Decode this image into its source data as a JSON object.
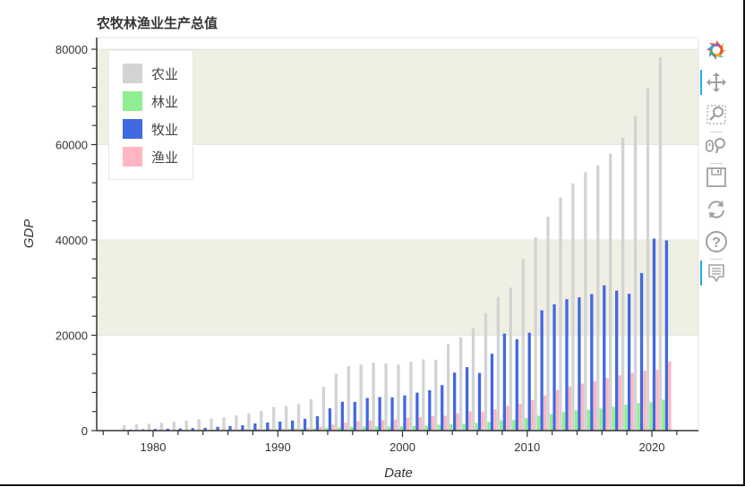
{
  "title": "农牧林渔业生产总值",
  "toolbar": {
    "items": [
      {
        "name": "bokeh-logo",
        "active": false
      },
      {
        "name": "pan-tool",
        "active": true
      },
      {
        "name": "box-zoom-tool",
        "active": false
      },
      {
        "name": "wheel-zoom-tool",
        "active": false
      },
      {
        "name": "save-tool",
        "active": false
      },
      {
        "name": "reset-tool",
        "active": false
      },
      {
        "name": "help-tool",
        "active": false
      },
      {
        "name": "hover-tool",
        "active": true
      }
    ]
  },
  "legend": [
    {
      "label": "农业",
      "color": "#d3d3d3"
    },
    {
      "label": "林业",
      "color": "#90ee90"
    },
    {
      "label": "牧业",
      "color": "#4169e1"
    },
    {
      "label": "渔业",
      "color": "#ffb6c1"
    }
  ],
  "colors": {
    "band": "#f0efe3",
    "axis": "#333333",
    "grid": "#e5e5e5"
  },
  "chart_data": {
    "type": "bar",
    "title": "农牧林渔业生产总值",
    "xlabel": "Date",
    "ylabel": "GDP",
    "ylim": [
      0,
      82000
    ],
    "xlim": [
      1975.5,
      2023.8
    ],
    "yticks": [
      0,
      20000,
      40000,
      60000,
      80000
    ],
    "xticks": [
      1980,
      1990,
      2000,
      2010,
      2020
    ],
    "bands": [
      [
        20000,
        40000
      ],
      [
        60000,
        80000
      ]
    ],
    "legend_position": "top-left",
    "categories": [
      1978,
      1979,
      1980,
      1981,
      1982,
      1983,
      1984,
      1985,
      1986,
      1987,
      1988,
      1989,
      1990,
      1991,
      1992,
      1993,
      1994,
      1995,
      1996,
      1997,
      1998,
      1999,
      2000,
      2001,
      2002,
      2003,
      2004,
      2005,
      2006,
      2007,
      2008,
      2009,
      2010,
      2011,
      2012,
      2013,
      2014,
      2015,
      2016,
      2017,
      2018,
      2019,
      2020,
      2021
    ],
    "series": [
      {
        "name": "农业",
        "color": "#d3d3d3",
        "values": [
          1120,
          1330,
          1450,
          1640,
          1870,
          2080,
          2380,
          2510,
          2790,
          3180,
          3670,
          4100,
          4950,
          5150,
          5590,
          6610,
          9170,
          11880,
          13540,
          13850,
          14240,
          14110,
          13870,
          14460,
          14930,
          14870,
          18140,
          19610,
          21520,
          24660,
          28040,
          30010,
          36000,
          40530,
          44850,
          48940,
          51850,
          54210,
          55660,
          58060,
          61450,
          66070,
          71750,
          78340
        ]
      },
      {
        "name": "林业",
        "color": "#90ee90",
        "values": [
          50,
          60,
          80,
          100,
          110,
          130,
          160,
          190,
          210,
          240,
          280,
          290,
          330,
          360,
          420,
          490,
          610,
          710,
          780,
          820,
          850,
          870,
          940,
          1000,
          1030,
          1240,
          1330,
          1430,
          1610,
          1860,
          2150,
          2190,
          2600,
          3120,
          3450,
          3900,
          4260,
          4360,
          4630,
          4980,
          5430,
          5780,
          5960,
          6500
        ]
      },
      {
        "name": "牧业",
        "color": "#4169e1",
        "values": [
          210,
          270,
          350,
          400,
          450,
          510,
          580,
          800,
          950,
          1110,
          1500,
          1700,
          1870,
          2120,
          2460,
          3010,
          4670,
          6050,
          6020,
          6840,
          7030,
          6990,
          7390,
          7960,
          8460,
          9540,
          12170,
          13310,
          12080,
          16120,
          20350,
          19170,
          20540,
          25240,
          26490,
          27570,
          27960,
          28650,
          30460,
          29360,
          28700,
          33060,
          40270,
          39910
        ]
      },
      {
        "name": "渔业",
        "color": "#ffb6c1",
        "values": [
          20,
          30,
          40,
          60,
          80,
          110,
          130,
          160,
          230,
          300,
          380,
          410,
          420,
          500,
          600,
          800,
          1280,
          1700,
          1950,
          2100,
          2200,
          2300,
          2710,
          2800,
          3000,
          3140,
          3600,
          4020,
          3970,
          4460,
          5200,
          5630,
          6420,
          7340,
          8520,
          9270,
          9870,
          10340,
          11000,
          11580,
          12130,
          12570,
          12780,
          14510
        ]
      }
    ]
  }
}
